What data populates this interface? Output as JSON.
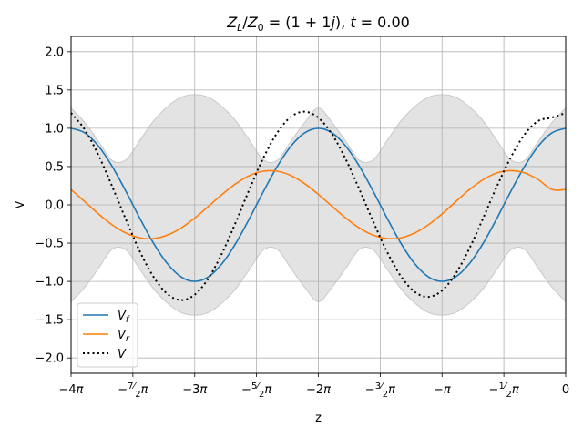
{
  "chart_data": {
    "type": "line",
    "title": "Z_L/Z_0 = (1+1j), t = 0.00",
    "title_parts": {
      "lhs_main": "Z",
      "lhs_sub": "L",
      "slash": "/",
      "rhs_main": "Z",
      "rhs_sub": "0",
      "equals": " = (1 + 1",
      "imag": "j",
      "close": "), ",
      "t": "t",
      "t_value": " = 0.00"
    },
    "xlabel": "z",
    "ylabel": "V",
    "xlim": [
      -12.566,
      0
    ],
    "ylim": [
      -2.2,
      2.2
    ],
    "grid": true,
    "legend_placement": "lower-left",
    "x_ticks": [
      {
        "value": -12.566,
        "label": "−4π"
      },
      {
        "value": -10.996,
        "label": "−7/2π"
      },
      {
        "value": -9.425,
        "label": "−3π"
      },
      {
        "value": -7.854,
        "label": "−5/2π"
      },
      {
        "value": -6.283,
        "label": "−2π"
      },
      {
        "value": -4.712,
        "label": "−3/2π"
      },
      {
        "value": -3.142,
        "label": "−π"
      },
      {
        "value": -1.571,
        "label": "−1/2π"
      },
      {
        "value": 0,
        "label": "0"
      }
    ],
    "y_ticks": [
      {
        "value": -2.0,
        "label": "−2.0"
      },
      {
        "value": -1.5,
        "label": "−1.5"
      },
      {
        "value": -1.0,
        "label": "−1.0"
      },
      {
        "value": -0.5,
        "label": "−0.5"
      },
      {
        "value": 0.0,
        "label": "0.0"
      },
      {
        "value": 0.5,
        "label": "0.5"
      },
      {
        "value": 1.0,
        "label": "1.0"
      },
      {
        "value": 1.5,
        "label": "1.5"
      },
      {
        "value": 2.0,
        "label": "2.0"
      }
    ],
    "envelope": {
      "color": "#e3e3e3",
      "edge_color": "#c8c8c8",
      "x": [
        -12.566,
        -12.217,
        -11.868,
        -11.519,
        -11.17,
        -10.821,
        -10.472,
        -10.123,
        -9.774,
        -9.425,
        -9.076,
        -8.727,
        -8.378,
        -8.029,
        -7.679,
        -7.33,
        -6.981,
        -6.632,
        -6.283,
        -5.934,
        -5.585,
        -5.236,
        -4.887,
        -4.538,
        -4.189,
        -3.84,
        -3.491,
        -3.142,
        -2.793,
        -2.443,
        -2.094,
        -1.745,
        -1.396,
        -1.047,
        -0.698,
        -0.349,
        0
      ],
      "upper": [
        1.265,
        1.075,
        0.828,
        0.579,
        0.589,
        0.84,
        1.094,
        1.28,
        1.405,
        1.441,
        1.405,
        1.28,
        1.094,
        0.84,
        0.589,
        0.579,
        0.828,
        1.075,
        1.265,
        1.075,
        0.828,
        0.579,
        0.589,
        0.84,
        1.094,
        1.28,
        1.405,
        1.441,
        1.405,
        1.28,
        1.094,
        0.84,
        0.589,
        0.579,
        0.828,
        1.075,
        1.265
      ]
    },
    "series": [
      {
        "name": "V_f",
        "label_main": "V",
        "label_sub": "f",
        "color": "#1f77b4",
        "style": "solid",
        "x": [
          -12.566,
          -12.217,
          -11.868,
          -11.519,
          -11.17,
          -10.821,
          -10.472,
          -10.123,
          -9.774,
          -9.425,
          -9.076,
          -8.727,
          -8.378,
          -8.029,
          -7.679,
          -7.33,
          -6.981,
          -6.632,
          -6.283,
          -5.934,
          -5.585,
          -5.236,
          -4.887,
          -4.538,
          -4.189,
          -3.84,
          -3.491,
          -3.142,
          -2.793,
          -2.443,
          -2.094,
          -1.745,
          -1.396,
          -1.047,
          -0.698,
          -0.349,
          0
        ],
        "values": [
          1.0,
          0.94,
          0.766,
          0.5,
          0.174,
          -0.174,
          -0.5,
          -0.766,
          -0.94,
          -1.0,
          -0.94,
          -0.766,
          -0.5,
          -0.174,
          0.174,
          0.5,
          0.766,
          0.94,
          1.0,
          0.94,
          0.766,
          0.5,
          0.174,
          -0.174,
          -0.5,
          -0.766,
          -0.94,
          -1.0,
          -0.94,
          -0.766,
          -0.5,
          -0.174,
          0.174,
          0.5,
          0.766,
          0.94,
          1.0
        ]
      },
      {
        "name": "V_r",
        "label_main": "V",
        "label_sub": "r",
        "color": "#ff7f0e",
        "style": "solid",
        "x": [
          -12.566,
          -12.217,
          -11.868,
          -11.519,
          -11.17,
          -10.821,
          -10.472,
          -10.123,
          -9.774,
          -9.425,
          -9.076,
          -8.727,
          -8.378,
          -8.029,
          -7.679,
          -7.33,
          -6.981,
          -6.632,
          -6.283,
          -5.934,
          -5.585,
          -5.236,
          -4.887,
          -4.538,
          -4.189,
          -3.84,
          -3.491,
          -3.142,
          -2.793,
          -2.443,
          -2.094,
          -1.745,
          -1.396,
          -1.047,
          -0.698,
          -0.349,
          0
        ],
        "values": [
          0.2,
          0.042,
          -0.119,
          -0.262,
          -0.369,
          -0.431,
          -0.44,
          -0.396,
          -0.304,
          -0.173,
          -0.02,
          0.137,
          0.277,
          0.384,
          0.44,
          0.44,
          0.384,
          0.277,
          0.137,
          -0.02,
          -0.173,
          -0.304,
          -0.396,
          -0.44,
          -0.431,
          -0.369,
          -0.262,
          -0.119,
          0.042,
          0.2,
          0.33,
          0.418,
          0.447,
          0.418,
          0.33,
          0.2,
          0.2
        ]
      },
      {
        "name": "V",
        "label_main": "V",
        "label_sub": "",
        "color": "#000000",
        "style": "dotted",
        "x": [
          -12.566,
          -12.217,
          -11.868,
          -11.519,
          -11.17,
          -10.821,
          -10.472,
          -10.123,
          -9.774,
          -9.425,
          -9.076,
          -8.727,
          -8.378,
          -8.029,
          -7.679,
          -7.33,
          -6.981,
          -6.632,
          -6.283,
          -5.934,
          -5.585,
          -5.236,
          -4.887,
          -4.538,
          -4.189,
          -3.84,
          -3.491,
          -3.142,
          -2.793,
          -2.443,
          -2.094,
          -1.745,
          -1.396,
          -1.047,
          -0.698,
          -0.349,
          0
        ],
        "values": [
          1.2,
          0.982,
          0.647,
          0.238,
          -0.195,
          -0.605,
          -0.94,
          -1.162,
          -1.244,
          -1.173,
          -0.96,
          -0.629,
          -0.223,
          0.21,
          0.614,
          0.94,
          1.15,
          1.217,
          1.137,
          0.92,
          0.593,
          0.196,
          -0.222,
          -0.614,
          -0.931,
          -1.135,
          -1.202,
          -1.119,
          -0.898,
          -0.566,
          -0.17,
          0.244,
          0.619,
          0.918,
          1.096,
          1.14,
          1.2
        ]
      }
    ]
  }
}
